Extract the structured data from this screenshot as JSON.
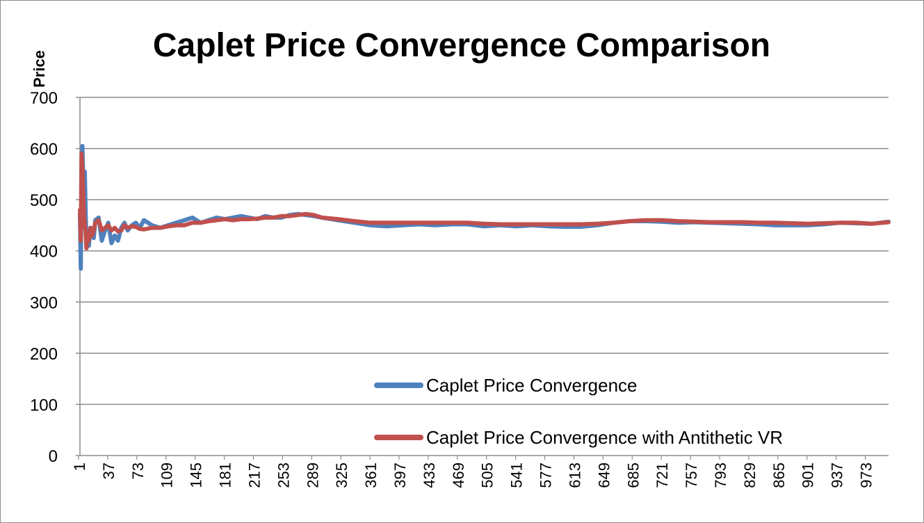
{
  "chart_data": {
    "type": "line",
    "title": "Caplet Price Convergence Comparison",
    "xlabel": "",
    "ylabel": "Price",
    "ylim": [
      0,
      700
    ],
    "yticks": [
      "0",
      "100",
      "200",
      "300",
      "400",
      "500",
      "600",
      "700"
    ],
    "xlim": [
      1,
      1000
    ],
    "xticks": [
      "1",
      "37",
      "73",
      "109",
      "145",
      "181",
      "217",
      "253",
      "289",
      "325",
      "361",
      "397",
      "433",
      "469",
      "505",
      "541",
      "577",
      "613",
      "649",
      "685",
      "721",
      "757",
      "793",
      "829",
      "865",
      "901",
      "937",
      "973"
    ],
    "grid": true,
    "legend_position": "bottom-right",
    "series": [
      {
        "name": "Caplet Price Convergence",
        "color": "#4f81bd",
        "x": [
          1,
          2,
          3,
          4,
          5,
          6,
          7,
          8,
          9,
          10,
          12,
          14,
          16,
          18,
          20,
          24,
          28,
          32,
          36,
          40,
          44,
          48,
          52,
          56,
          60,
          65,
          70,
          75,
          80,
          90,
          100,
          110,
          120,
          130,
          140,
          150,
          160,
          170,
          180,
          190,
          200,
          210,
          220,
          230,
          240,
          250,
          260,
          270,
          280,
          290,
          300,
          320,
          340,
          360,
          380,
          400,
          420,
          440,
          460,
          480,
          500,
          520,
          540,
          560,
          580,
          600,
          620,
          640,
          660,
          680,
          700,
          720,
          740,
          760,
          780,
          800,
          820,
          840,
          860,
          880,
          900,
          920,
          940,
          960,
          980,
          1000
        ],
        "values": [
          470,
          365,
          560,
          605,
          540,
          470,
          555,
          480,
          420,
          430,
          410,
          445,
          430,
          425,
          460,
          465,
          420,
          440,
          455,
          415,
          430,
          420,
          445,
          455,
          440,
          450,
          455,
          445,
          460,
          450,
          445,
          450,
          455,
          460,
          465,
          455,
          460,
          465,
          462,
          465,
          468,
          465,
          462,
          468,
          465,
          465,
          470,
          472,
          470,
          468,
          465,
          460,
          455,
          450,
          448,
          450,
          452,
          450,
          452,
          452,
          448,
          450,
          448,
          450,
          448,
          447,
          447,
          450,
          455,
          458,
          458,
          457,
          455,
          456,
          455,
          454,
          453,
          452,
          450,
          450,
          450,
          452,
          455,
          454,
          453,
          457
        ]
      },
      {
        "name": "Caplet Price Convergence with Antithetic VR",
        "color": "#c0504d",
        "x": [
          1,
          2,
          3,
          4,
          5,
          6,
          7,
          8,
          9,
          10,
          12,
          14,
          16,
          18,
          20,
          24,
          28,
          32,
          36,
          40,
          44,
          48,
          52,
          56,
          60,
          65,
          70,
          75,
          80,
          90,
          100,
          110,
          120,
          130,
          140,
          150,
          160,
          170,
          180,
          190,
          200,
          210,
          220,
          230,
          240,
          250,
          260,
          270,
          280,
          290,
          300,
          320,
          340,
          360,
          380,
          400,
          420,
          440,
          460,
          480,
          500,
          520,
          540,
          560,
          580,
          600,
          620,
          640,
          660,
          680,
          700,
          720,
          740,
          760,
          780,
          800,
          820,
          840,
          860,
          880,
          900,
          920,
          940,
          960,
          980,
          1000
        ],
        "values": [
          480,
          420,
          590,
          560,
          510,
          470,
          450,
          440,
          405,
          425,
          420,
          445,
          430,
          440,
          455,
          460,
          440,
          445,
          450,
          440,
          445,
          438,
          440,
          450,
          445,
          448,
          447,
          443,
          442,
          445,
          445,
          448,
          450,
          450,
          455,
          455,
          458,
          460,
          462,
          460,
          462,
          462,
          463,
          465,
          465,
          468,
          468,
          470,
          472,
          470,
          465,
          462,
          458,
          455,
          455,
          455,
          455,
          455,
          455,
          455,
          453,
          452,
          452,
          452,
          452,
          452,
          452,
          453,
          455,
          458,
          460,
          460,
          458,
          457,
          456,
          456,
          456,
          455,
          455,
          454,
          453,
          454,
          455,
          455,
          453,
          456
        ]
      }
    ]
  }
}
